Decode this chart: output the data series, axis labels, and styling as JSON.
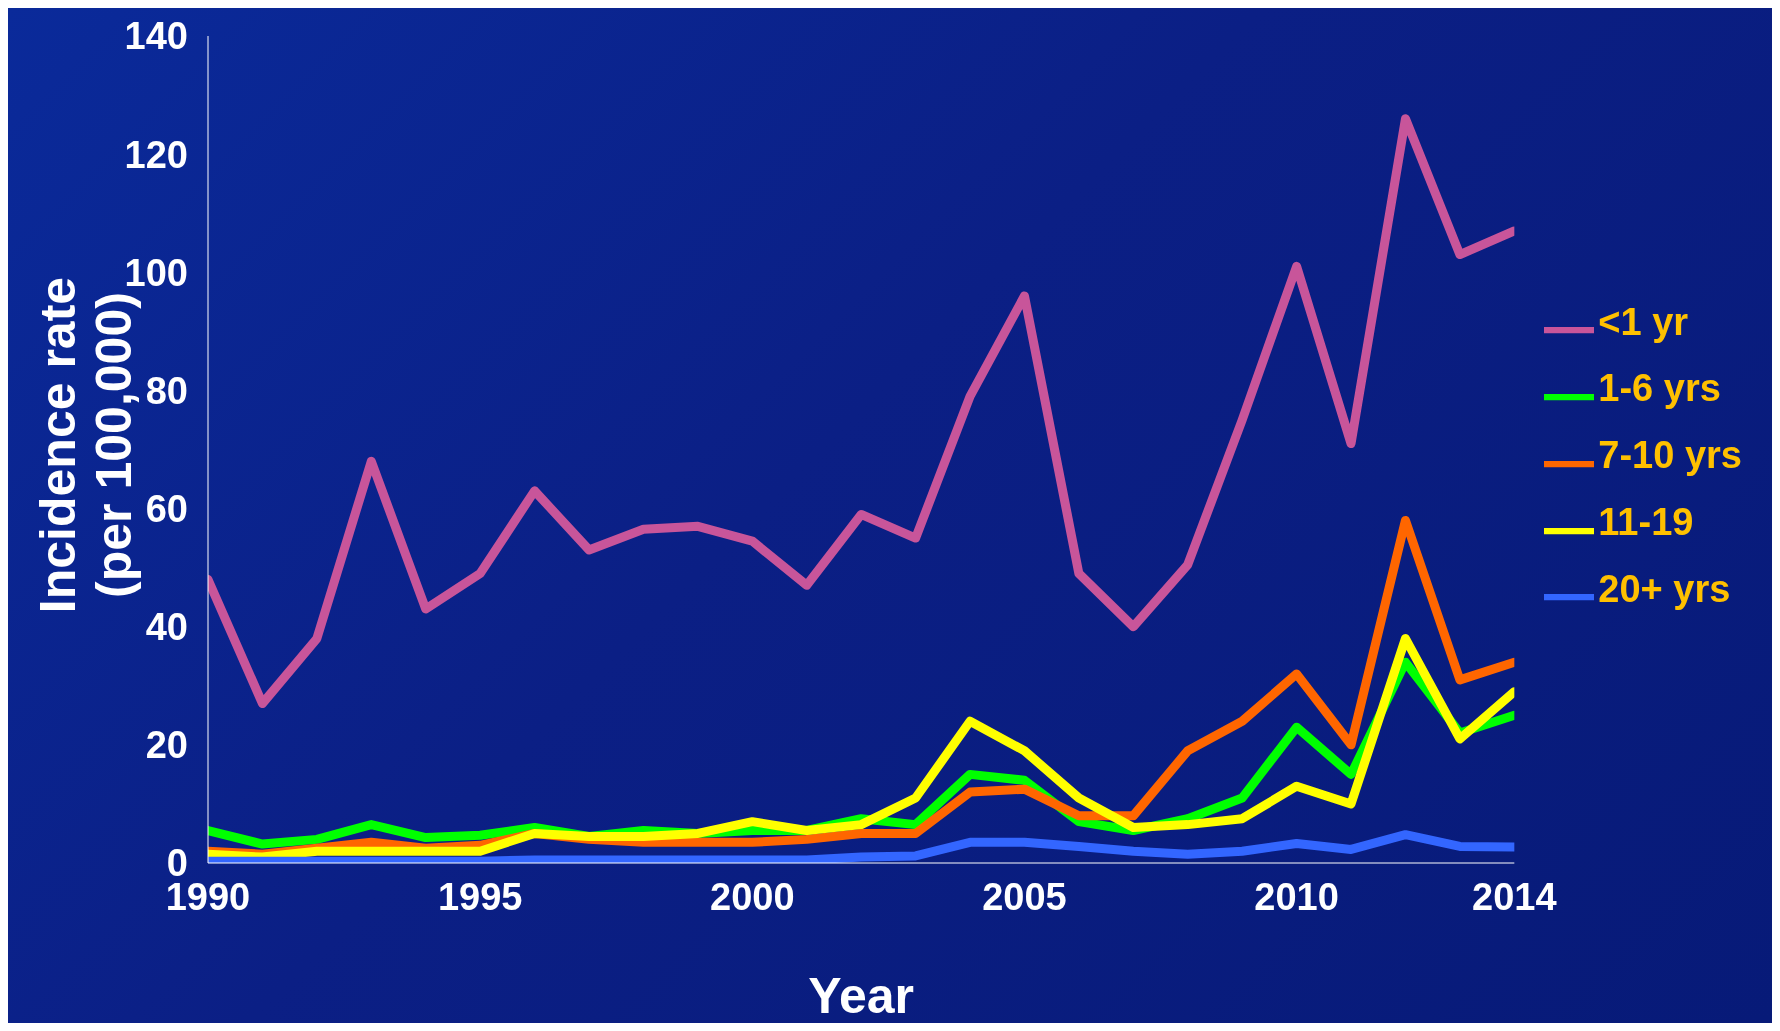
{
  "chart_data": {
    "type": "line",
    "xlabel": "Year",
    "ylabel": "Incidence rate\n(per 100,000)",
    "x": [
      1990,
      1991,
      1992,
      1993,
      1994,
      1995,
      1996,
      1997,
      1998,
      1999,
      2000,
      2001,
      2002,
      2003,
      2004,
      2005,
      2006,
      2007,
      2008,
      2009,
      2010,
      2011,
      2012,
      2013,
      2014
    ],
    "series": [
      {
        "name": "<1 yr",
        "color": "#c8559a",
        "values": [
          48,
          27,
          38,
          68,
          43,
          49,
          63,
          53,
          56.5,
          57,
          54.5,
          47,
          59,
          55,
          79,
          96,
          49,
          40,
          50.5,
          75,
          101,
          71,
          126,
          103,
          107
        ]
      },
      {
        "name": "1-6 yrs",
        "color": "#00ff00",
        "values": [
          5.5,
          3.2,
          4,
          6.5,
          4.3,
          4.7,
          6,
          4.5,
          5.5,
          5,
          5.5,
          5.5,
          7.5,
          6.5,
          15,
          14,
          7,
          5.5,
          7.5,
          11,
          23,
          15,
          34,
          22,
          25
        ]
      },
      {
        "name": "7-10 yrs",
        "color": "#ff6600",
        "values": [
          2,
          1.5,
          2.5,
          3.5,
          2.5,
          3,
          5,
          4,
          3.5,
          3.5,
          3.5,
          4,
          5,
          5,
          12,
          12.5,
          8,
          8,
          19,
          24,
          32,
          20,
          58,
          31,
          34
        ]
      },
      {
        "name": "11-19",
        "color": "#ffff00",
        "values": [
          1.5,
          1,
          2,
          2,
          2,
          2,
          5,
          4.5,
          4.5,
          5,
          7,
          5.5,
          6.5,
          11,
          24,
          19,
          11,
          6,
          6.5,
          7.5,
          13,
          10,
          38,
          21,
          29
        ]
      },
      {
        "name": "20+ yrs",
        "color": "#3366ff",
        "values": [
          0.3,
          0.3,
          0.3,
          0.3,
          0.3,
          0.3,
          0.5,
          0.5,
          0.5,
          0.5,
          0.5,
          0.5,
          1,
          1.2,
          3.5,
          3.5,
          2.8,
          2,
          1.5,
          2,
          3.3,
          2.3,
          4.8,
          2.8,
          2.7
        ]
      }
    ],
    "xlim": [
      1990,
      2014
    ],
    "xticks": [
      1990,
      1995,
      2000,
      2005,
      2010,
      2014
    ],
    "ylim": [
      0,
      140
    ],
    "yticks": [
      0,
      20,
      40,
      60,
      80,
      100,
      120,
      140
    ],
    "grid": false,
    "legend": "right",
    "marker": "none",
    "line_style": "solid"
  }
}
